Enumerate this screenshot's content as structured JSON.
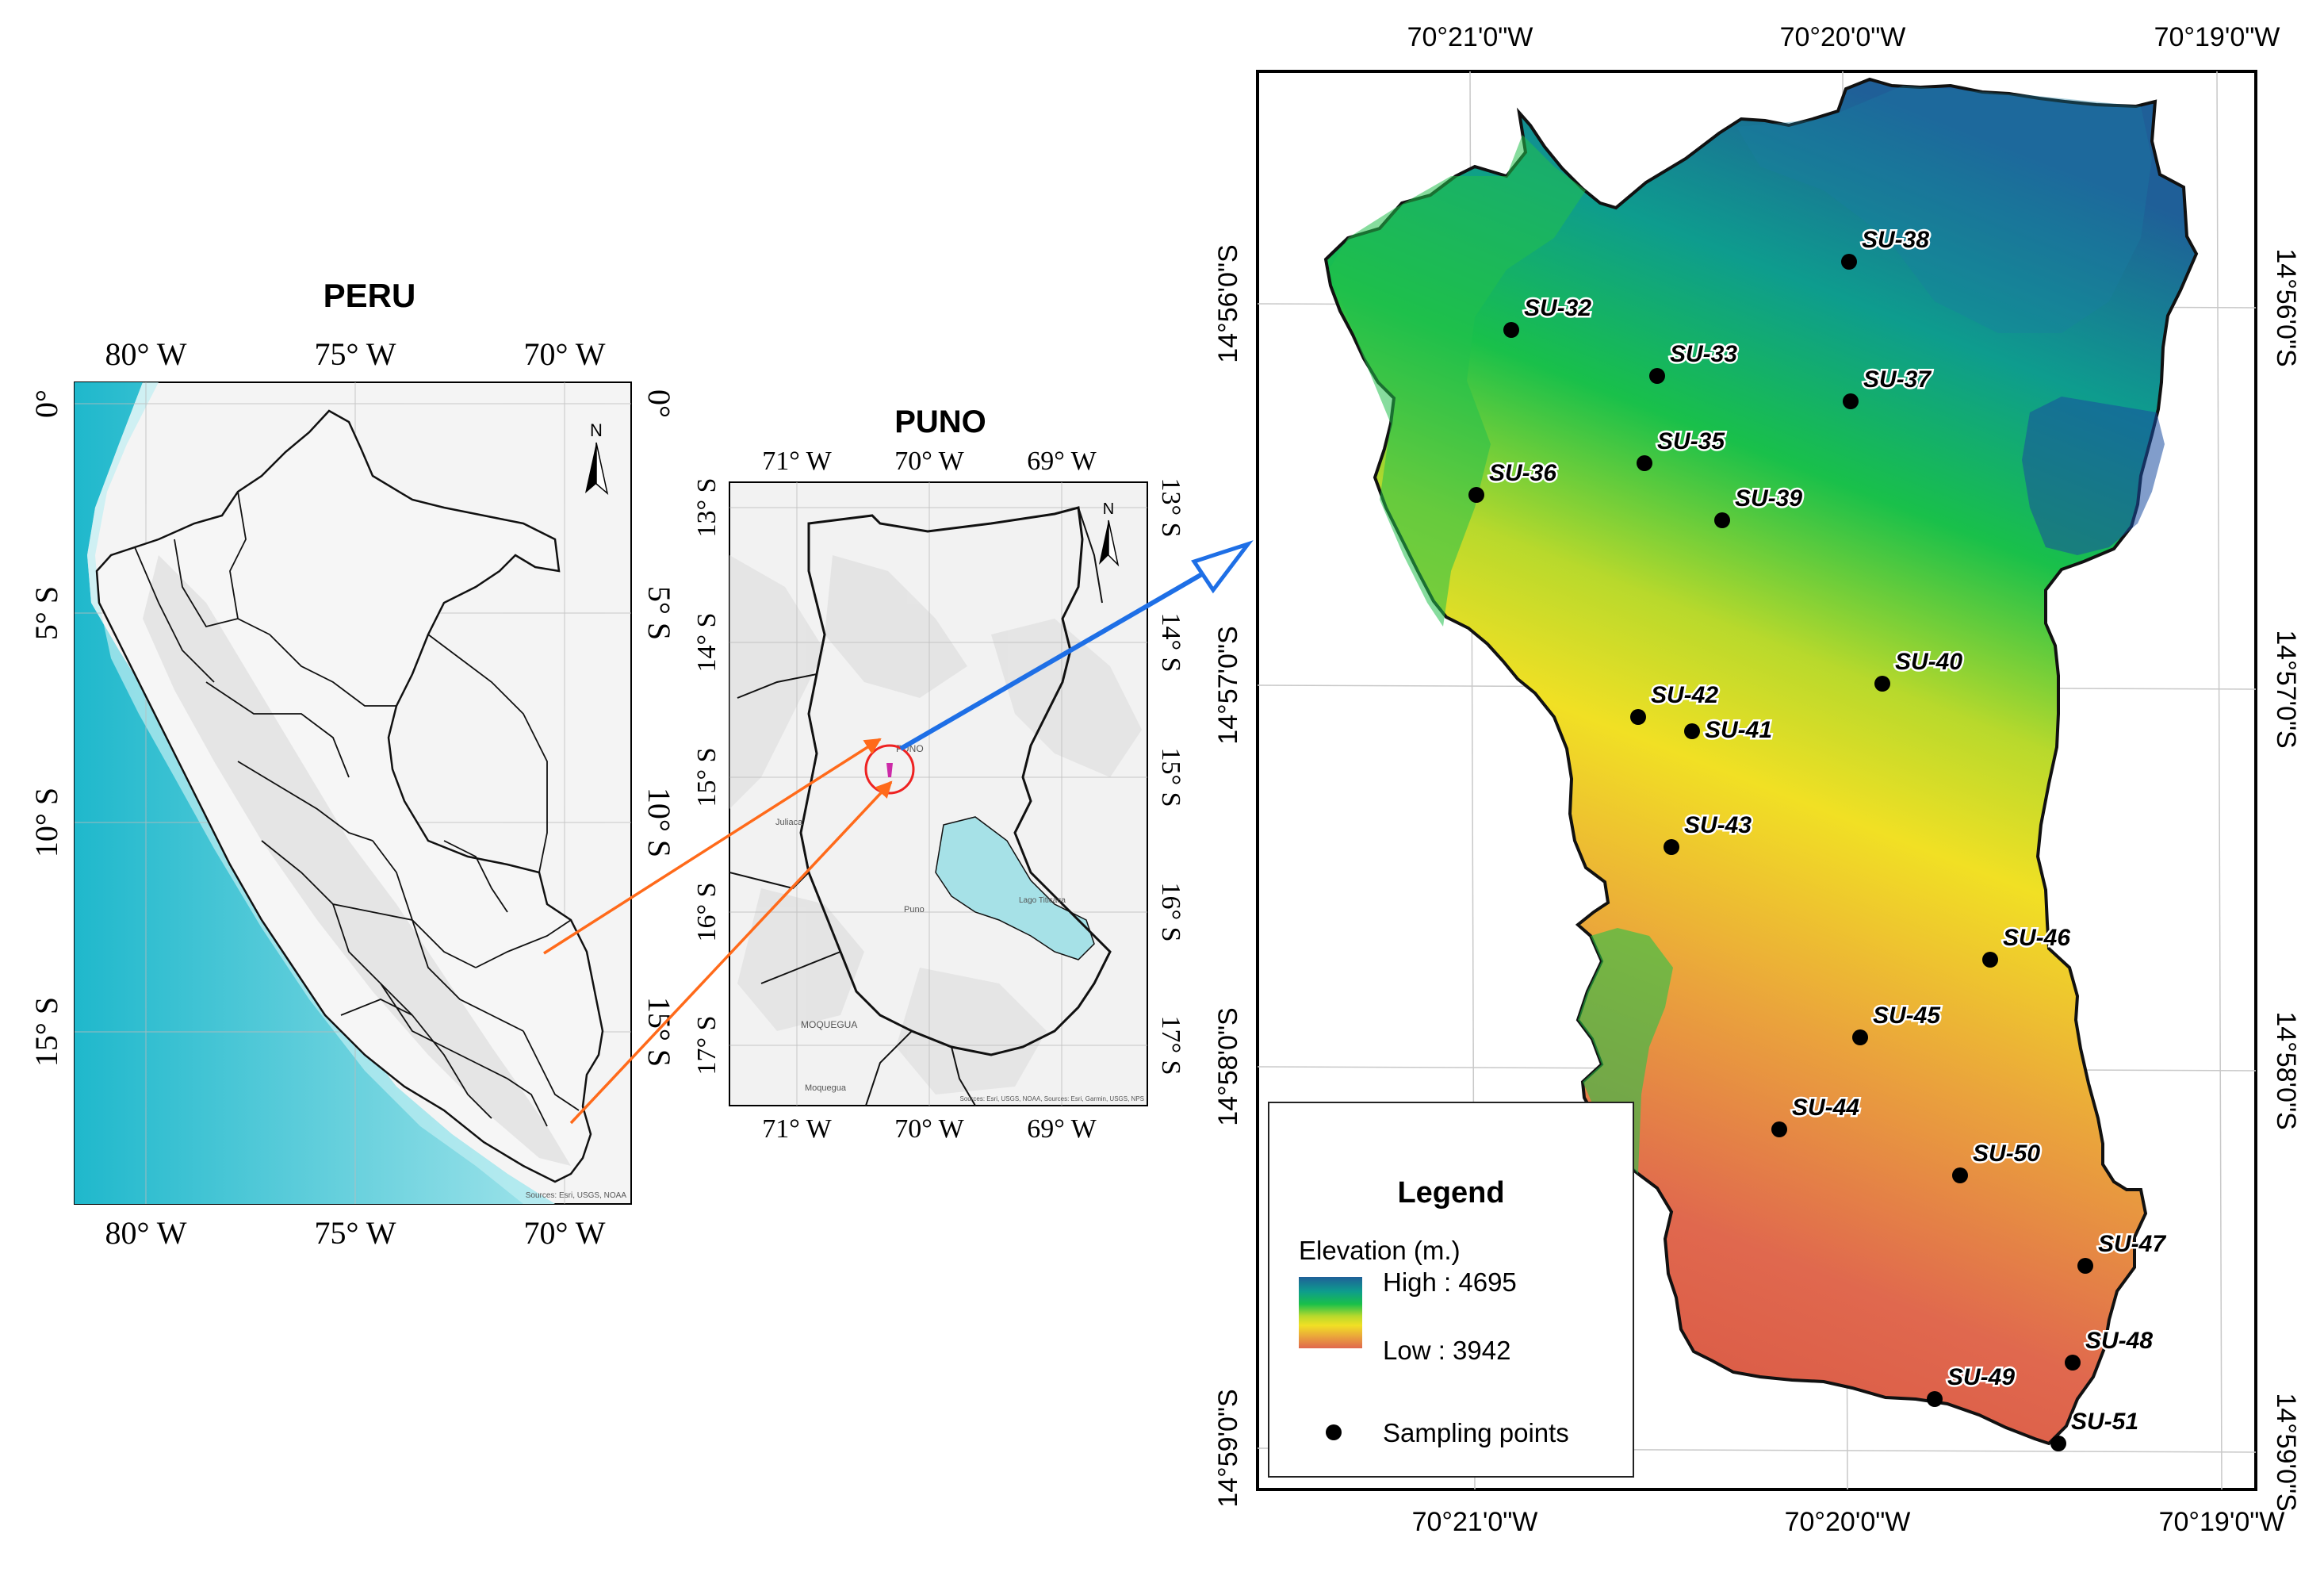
{
  "peru": {
    "title": "PERU",
    "lon_ticks": [
      "80° W",
      "75° W",
      "70° W"
    ],
    "lat_ticks": [
      "0°",
      "5° S",
      "10° S",
      "15° S"
    ],
    "north": "N",
    "credit": "Sources: Esri, USGS, NOAA"
  },
  "puno": {
    "title": "PUNO",
    "lon_ticks": [
      "71° W",
      "70° W",
      "69° W"
    ],
    "lat_ticks": [
      "13° S",
      "14° S",
      "15° S",
      "16° S",
      "17° S"
    ],
    "north": "N",
    "place_labels": [
      "PUNO",
      "MOQUEGUA",
      "Lago Titicaca",
      "Puno",
      "Juliaca",
      "Moquegua"
    ],
    "credit": "Sources: Esri, USGS, NOAA, Sources: Esri, Garmin, USGS, NPS"
  },
  "study": {
    "lon_ticks": [
      "70°21'0\"W",
      "70°20'0\"W",
      "70°19'0\"W"
    ],
    "lat_ticks": [
      "14°56'0\"S",
      "14°57'0\"S",
      "14°58'0\"S",
      "14°59'0\"S"
    ],
    "points": [
      {
        "id": "SU-32"
      },
      {
        "id": "SU-33"
      },
      {
        "id": "SU-35"
      },
      {
        "id": "SU-36"
      },
      {
        "id": "SU-37"
      },
      {
        "id": "SU-38"
      },
      {
        "id": "SU-39"
      },
      {
        "id": "SU-40"
      },
      {
        "id": "SU-41"
      },
      {
        "id": "SU-42"
      },
      {
        "id": "SU-43"
      },
      {
        "id": "SU-44"
      },
      {
        "id": "SU-45"
      },
      {
        "id": "SU-46"
      },
      {
        "id": "SU-47"
      },
      {
        "id": "SU-48"
      },
      {
        "id": "SU-49"
      },
      {
        "id": "SU-50"
      },
      {
        "id": "SU-51"
      }
    ]
  },
  "legend": {
    "title": "Legend",
    "elevation_label": "Elevation (m.)",
    "high": "High : 4695",
    "low": "Low : 3942",
    "points_label": "Sampling points",
    "ramp": [
      "#1f5f98",
      "#0e9c8e",
      "#19c04a",
      "#b8d92c",
      "#f1e024",
      "#eaa33c",
      "#e0684e"
    ]
  },
  "colors": {
    "ocean": "#3fc4d6",
    "lake": "#a6e1e7",
    "arrow_orange": "#ff6a1a",
    "arrow_blue": "#1e6fe6",
    "circle": "#ee2222"
  }
}
